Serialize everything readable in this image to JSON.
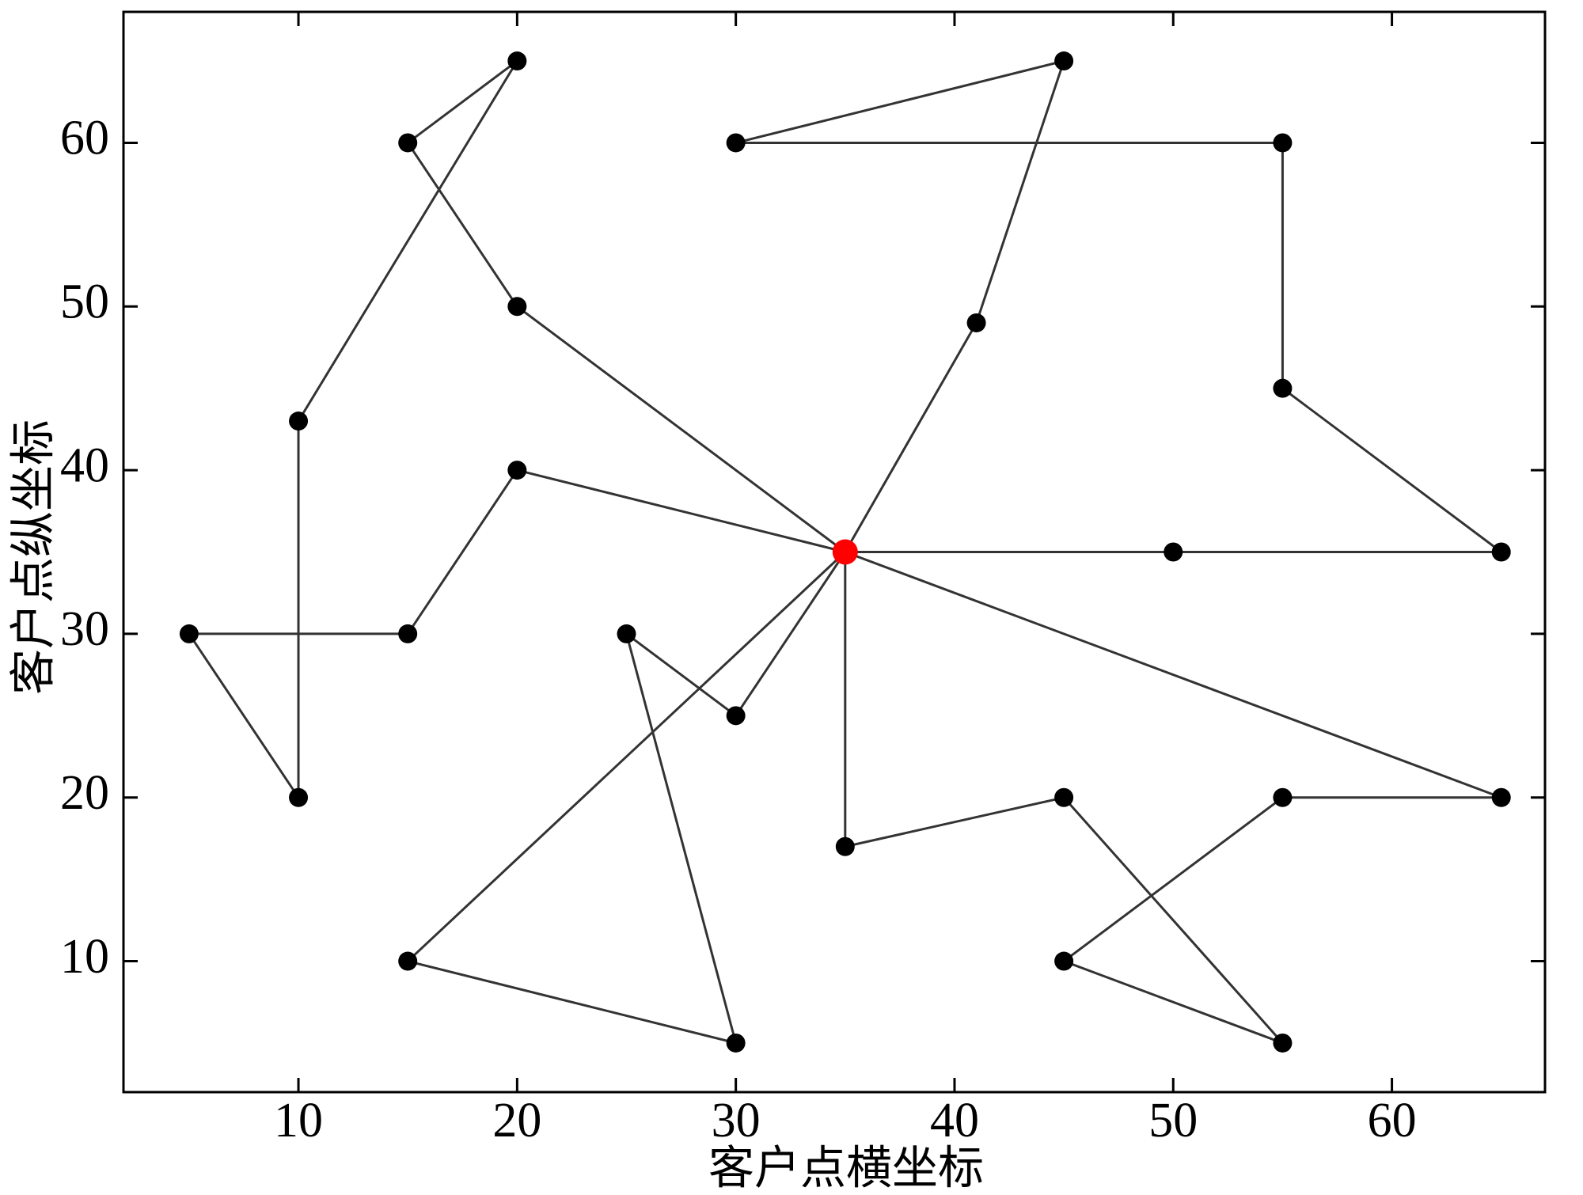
{
  "chart_data": {
    "type": "route",
    "x_label": "客户点横坐标",
    "y_label": "客户点纵坐标",
    "xlim": [
      2,
      67
    ],
    "ylim": [
      2,
      68
    ],
    "xticks": [
      10,
      20,
      30,
      40,
      50,
      60
    ],
    "yticks": [
      10,
      20,
      30,
      40,
      50,
      60
    ],
    "line_color": "#333333",
    "point_color": "#000000",
    "depot": {
      "x": 35,
      "y": 35,
      "color": "#ff0000"
    },
    "routes": [
      {
        "x": [
          35,
          20,
          15,
          20,
          10,
          10,
          5,
          15,
          20,
          35
        ],
        "y": [
          35,
          50,
          60,
          65,
          43,
          20,
          30,
          30,
          40,
          35
        ]
      },
      {
        "x": [
          35,
          41,
          45,
          30,
          55,
          55,
          65,
          50,
          35
        ],
        "y": [
          35,
          49,
          65,
          60,
          60,
          45,
          35,
          35,
          35
        ]
      },
      {
        "x": [
          35,
          65,
          55,
          45,
          55,
          45,
          35,
          35
        ],
        "y": [
          35,
          20,
          20,
          10,
          5,
          20,
          17,
          35
        ]
      },
      {
        "x": [
          35,
          30,
          25,
          30,
          15,
          35
        ],
        "y": [
          35,
          25,
          30,
          5,
          10,
          35
        ]
      }
    ]
  }
}
